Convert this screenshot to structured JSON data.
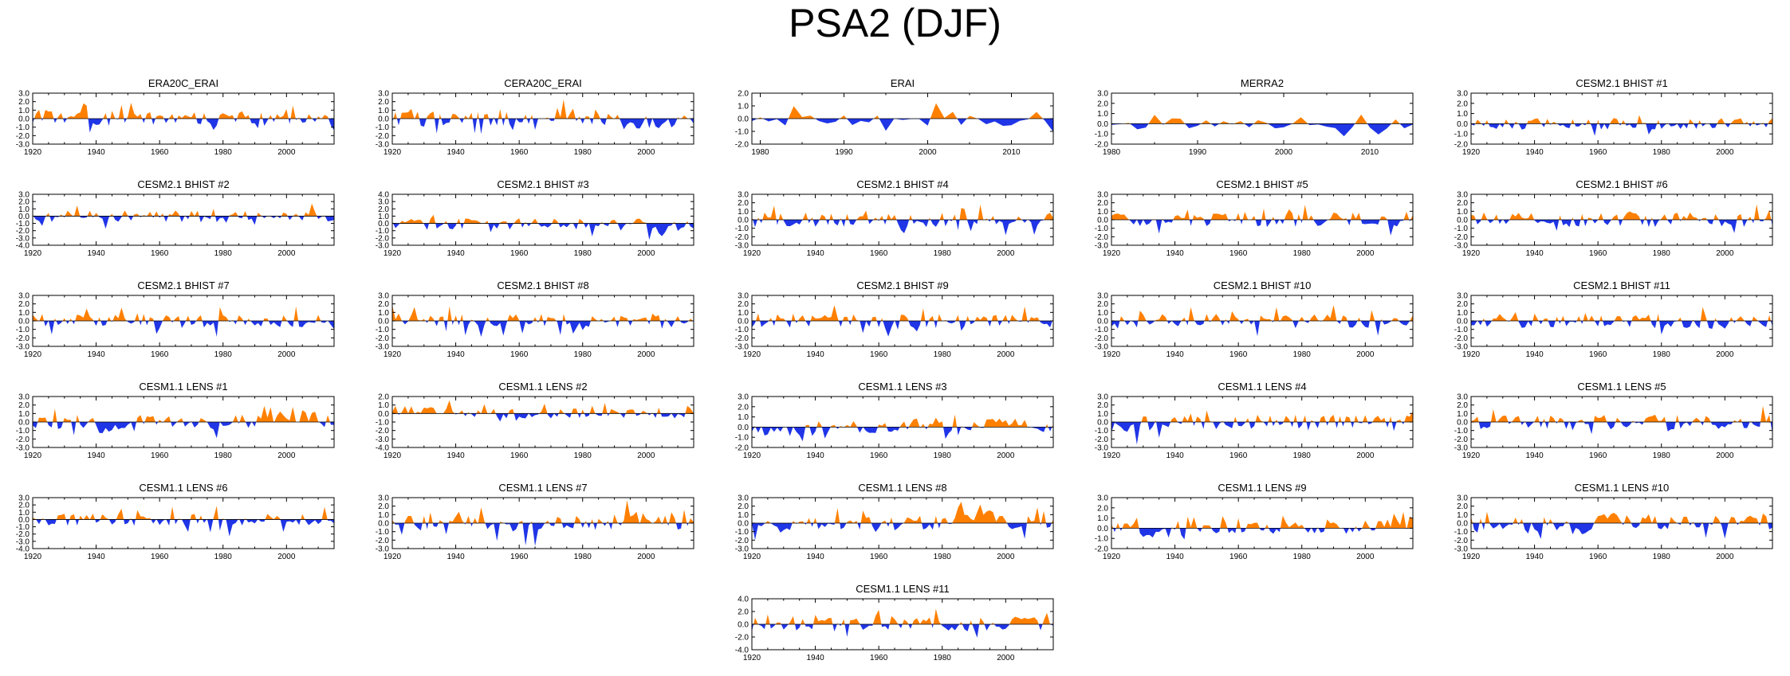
{
  "title": "PSA2 (DJF)",
  "colors": {
    "positive": "#ff8000",
    "negative": "#1f35e6",
    "axis": "#000000"
  },
  "chart_data": [
    {
      "type": "area",
      "title": "ERA20C_ERAI",
      "xlim": [
        1920,
        2015
      ],
      "ylim": [
        -3,
        3
      ],
      "xticks": [
        1920,
        1940,
        1960,
        1980,
        2000
      ],
      "yticks": [
        -3,
        -2,
        -1,
        0,
        1,
        2,
        3
      ],
      "seed": 11,
      "dir": [
        0,
        0,
        0,
        0,
        0,
        0,
        0,
        0,
        0,
        0
      ]
    },
    {
      "type": "area",
      "title": "CERA20C_ERAI",
      "xlim": [
        1920,
        2015
      ],
      "ylim": [
        -3,
        3
      ],
      "xticks": [
        1920,
        1940,
        1960,
        1980,
        2000
      ],
      "yticks": [
        -3,
        -2,
        -1,
        0,
        1,
        2,
        3
      ],
      "seed": 12,
      "dir": [
        0,
        0,
        0,
        0,
        0,
        1,
        0,
        -1,
        -1,
        0
      ]
    },
    {
      "type": "area",
      "title": "ERAI",
      "xlim": [
        1979,
        2015
      ],
      "ylim": [
        -2,
        2
      ],
      "xticks": [
        1980,
        1990,
        2000,
        2010
      ],
      "yticks": [
        -2,
        -1,
        0,
        1,
        2
      ],
      "seed": 13,
      "dir": [
        0,
        0,
        0,
        0,
        0,
        0,
        0,
        0,
        0,
        0
      ]
    },
    {
      "type": "area",
      "title": "MERRA2",
      "xlim": [
        1980,
        2015
      ],
      "ylim": [
        -2,
        3
      ],
      "xticks": [
        1980,
        1990,
        2000,
        2010
      ],
      "yticks": [
        -2,
        -1,
        0,
        1,
        2,
        3
      ],
      "seed": 14,
      "dir": [
        0,
        1,
        0,
        0,
        0,
        0,
        0,
        0,
        0,
        0
      ]
    },
    {
      "type": "area",
      "title": "CESM2.1 BHIST #1",
      "xlim": [
        1920,
        2015
      ],
      "ylim": [
        -2,
        3
      ],
      "xticks": [
        1920,
        1940,
        1960,
        1980,
        2000
      ],
      "yticks": [
        -2,
        -1,
        0,
        1,
        2,
        3
      ],
      "seed": 15,
      "dir": [
        0,
        0,
        0,
        0,
        0,
        0,
        0,
        0,
        0,
        0
      ]
    },
    {
      "type": "area",
      "title": "CESM2.1 BHIST #2",
      "xlim": [
        1920,
        2015
      ],
      "ylim": [
        -4,
        3
      ],
      "xticks": [
        1920,
        1940,
        1960,
        1980,
        2000
      ],
      "yticks": [
        -4,
        -3,
        -2,
        -1,
        0,
        1,
        2,
        3
      ],
      "seed": 16,
      "dir": [
        0,
        0,
        0,
        0,
        0,
        0,
        0,
        0,
        0,
        0
      ]
    },
    {
      "type": "area",
      "title": "CESM2.1 BHIST #3",
      "xlim": [
        1920,
        2015
      ],
      "ylim": [
        -3,
        4
      ],
      "xticks": [
        1920,
        1940,
        1960,
        1980,
        2000
      ],
      "yticks": [
        -3,
        -2,
        -1,
        0,
        1,
        2,
        3,
        4
      ],
      "seed": 17,
      "dir": [
        0,
        0,
        0,
        0,
        0,
        0,
        0,
        0,
        -1,
        -1
      ]
    },
    {
      "type": "area",
      "title": "CESM2.1 BHIST #4",
      "xlim": [
        1920,
        2015
      ],
      "ylim": [
        -3,
        3
      ],
      "xticks": [
        1920,
        1940,
        1960,
        1980,
        2000
      ],
      "yticks": [
        -3,
        -2,
        -1,
        0,
        1,
        2,
        3
      ],
      "seed": 18,
      "dir": [
        0,
        0,
        0,
        0,
        0,
        0,
        0,
        0,
        0,
        0
      ]
    },
    {
      "type": "area",
      "title": "CESM2.1 BHIST #5",
      "xlim": [
        1920,
        2015
      ],
      "ylim": [
        -3,
        3
      ],
      "xticks": [
        1920,
        1940,
        1960,
        1980,
        2000
      ],
      "yticks": [
        -3,
        -2,
        -1,
        0,
        1,
        2,
        3
      ],
      "seed": 19,
      "dir": [
        0,
        0,
        0,
        0,
        0,
        0,
        0,
        0,
        0,
        0
      ]
    },
    {
      "type": "area",
      "title": "CESM2.1 BHIST #6",
      "xlim": [
        1920,
        2015
      ],
      "ylim": [
        -3,
        3
      ],
      "xticks": [
        1920,
        1940,
        1960,
        1980,
        2000
      ],
      "yticks": [
        -3,
        -2,
        -1,
        0,
        1,
        2,
        3
      ],
      "seed": 20,
      "dir": [
        0,
        0,
        0,
        0,
        0,
        0,
        0,
        0,
        0,
        0
      ]
    },
    {
      "type": "area",
      "title": "CESM2.1 BHIST #7",
      "xlim": [
        1920,
        2015
      ],
      "ylim": [
        -3,
        3
      ],
      "xticks": [
        1920,
        1940,
        1960,
        1980,
        2000
      ],
      "yticks": [
        -3,
        -2,
        -1,
        0,
        1,
        2,
        3
      ],
      "seed": 21,
      "dir": [
        0,
        0,
        0,
        0,
        0,
        0,
        0,
        0,
        0,
        0
      ]
    },
    {
      "type": "area",
      "title": "CESM2.1 BHIST #8",
      "xlim": [
        1920,
        2015
      ],
      "ylim": [
        -3,
        3
      ],
      "xticks": [
        1920,
        1940,
        1960,
        1980,
        2000
      ],
      "yticks": [
        -3,
        -2,
        -1,
        0,
        1,
        2,
        3
      ],
      "seed": 22,
      "dir": [
        0,
        0,
        0,
        0,
        0,
        0,
        -1,
        0,
        0,
        0
      ]
    },
    {
      "type": "area",
      "title": "CESM2.1 BHIST #9",
      "xlim": [
        1920,
        2015
      ],
      "ylim": [
        -3,
        3
      ],
      "xticks": [
        1920,
        1940,
        1960,
        1980,
        2000
      ],
      "yticks": [
        -3,
        -2,
        -1,
        0,
        1,
        2,
        3
      ],
      "seed": 23,
      "dir": [
        0,
        0,
        0,
        0,
        0,
        0,
        0,
        0,
        0,
        0
      ]
    },
    {
      "type": "area",
      "title": "CESM2.1 BHIST #10",
      "xlim": [
        1920,
        2015
      ],
      "ylim": [
        -3,
        3
      ],
      "xticks": [
        1920,
        1940,
        1960,
        1980,
        2000
      ],
      "yticks": [
        -3,
        -2,
        -1,
        0,
        1,
        2,
        3
      ],
      "seed": 24,
      "dir": [
        0,
        0,
        0,
        0,
        0,
        0,
        0,
        0,
        0,
        0
      ]
    },
    {
      "type": "area",
      "title": "CESM2.1 BHIST #11",
      "xlim": [
        1920,
        2015
      ],
      "ylim": [
        -3,
        3
      ],
      "xticks": [
        1920,
        1940,
        1960,
        1980,
        2000
      ],
      "yticks": [
        -3,
        -2,
        -1,
        0,
        1,
        2,
        3
      ],
      "seed": 25,
      "dir": [
        0,
        0,
        0,
        0,
        0,
        0,
        0,
        0,
        0,
        0
      ]
    },
    {
      "type": "area",
      "title": "CESM1.1 LENS #1",
      "xlim": [
        1920,
        2015
      ],
      "ylim": [
        -3,
        3
      ],
      "xticks": [
        1920,
        1940,
        1960,
        1980,
        2000
      ],
      "yticks": [
        -3,
        -2,
        -1,
        0,
        1,
        2,
        3
      ],
      "seed": 26,
      "dir": [
        0,
        0,
        -1,
        0,
        0,
        0,
        0,
        0,
        1,
        0
      ]
    },
    {
      "type": "area",
      "title": "CESM1.1 LENS #2",
      "xlim": [
        1920,
        2015
      ],
      "ylim": [
        -4,
        2
      ],
      "xticks": [
        1920,
        1940,
        1960,
        1980,
        2000
      ],
      "yticks": [
        -4,
        -3,
        -2,
        -1,
        0,
        1,
        2
      ],
      "seed": 27,
      "dir": [
        1,
        1,
        0,
        0,
        0,
        0,
        0,
        0,
        0,
        0
      ]
    },
    {
      "type": "area",
      "title": "CESM1.1 LENS #3",
      "xlim": [
        1920,
        2015
      ],
      "ylim": [
        -2,
        3
      ],
      "xticks": [
        1920,
        1940,
        1960,
        1980,
        2000
      ],
      "yticks": [
        -2,
        -1,
        0,
        1,
        2,
        3
      ],
      "seed": 28,
      "dir": [
        -1,
        -1,
        0,
        0,
        0,
        1,
        0,
        1,
        1,
        0
      ]
    },
    {
      "type": "area",
      "title": "CESM1.1 LENS #4",
      "xlim": [
        1920,
        2015
      ],
      "ylim": [
        -3,
        3
      ],
      "xticks": [
        1920,
        1940,
        1960,
        1980,
        2000
      ],
      "yticks": [
        -3,
        -2,
        -1,
        0,
        1,
        2,
        3
      ],
      "seed": 29,
      "dir": [
        -1,
        0,
        0,
        0,
        0,
        0,
        0,
        0,
        0,
        1
      ]
    },
    {
      "type": "area",
      "title": "CESM1.1 LENS #5",
      "xlim": [
        1920,
        2015
      ],
      "ylim": [
        -3,
        3
      ],
      "xticks": [
        1920,
        1940,
        1960,
        1980,
        2000
      ],
      "yticks": [
        -3,
        -2,
        -1,
        0,
        1,
        2,
        3
      ],
      "seed": 30,
      "dir": [
        0,
        0,
        0,
        0,
        0,
        0,
        0,
        0,
        0,
        0
      ]
    },
    {
      "type": "area",
      "title": "CESM1.1 LENS #6",
      "xlim": [
        1920,
        2015
      ],
      "ylim": [
        -4,
        3
      ],
      "xticks": [
        1920,
        1940,
        1960,
        1980,
        2000
      ],
      "yticks": [
        -4,
        -3,
        -2,
        -1,
        0,
        1,
        2,
        3
      ],
      "seed": 31,
      "dir": [
        0,
        0,
        0,
        0,
        0,
        0,
        -1,
        0,
        0,
        0
      ]
    },
    {
      "type": "area",
      "title": "CESM1.1 LENS #7",
      "xlim": [
        1920,
        2015
      ],
      "ylim": [
        -3,
        3
      ],
      "xticks": [
        1920,
        1940,
        1960,
        1980,
        2000
      ],
      "yticks": [
        -3,
        -2,
        -1,
        0,
        1,
        2,
        3
      ],
      "seed": 32,
      "dir": [
        0,
        0,
        0,
        -1,
        -1,
        0,
        0,
        1,
        1,
        0
      ]
    },
    {
      "type": "area",
      "title": "CESM1.1 LENS #8",
      "xlim": [
        1920,
        2015
      ],
      "ylim": [
        -3,
        3
      ],
      "xticks": [
        1920,
        1940,
        1960,
        1980,
        2000
      ],
      "yticks": [
        -3,
        -2,
        -1,
        0,
        1,
        2,
        3
      ],
      "seed": 33,
      "dir": [
        -1,
        0,
        0,
        0,
        0,
        0,
        1,
        1,
        0,
        0
      ]
    },
    {
      "type": "area",
      "title": "CESM1.1 LENS #9",
      "xlim": [
        1920,
        2015
      ],
      "ylim": [
        -2,
        3
      ],
      "xticks": [
        1920,
        1940,
        1960,
        1980,
        2000
      ],
      "yticks": [
        -2,
        -1,
        0,
        1,
        2,
        3
      ],
      "seed": 34,
      "dir": [
        0,
        -1,
        0,
        0,
        0,
        0,
        0,
        0,
        1,
        1
      ]
    },
    {
      "type": "area",
      "title": "CESM1.1 LENS #10",
      "xlim": [
        1920,
        2015
      ],
      "ylim": [
        -3,
        3
      ],
      "xticks": [
        1920,
        1940,
        1960,
        1980,
        2000
      ],
      "yticks": [
        -3,
        -2,
        -1,
        0,
        1,
        2,
        3
      ],
      "seed": 35,
      "dir": [
        0,
        0,
        0,
        -1,
        1,
        0,
        0,
        0,
        0,
        0
      ]
    },
    {
      "type": "area",
      "title": "CESM1.1 LENS #11",
      "xlim": [
        1920,
        2015
      ],
      "ylim": [
        -4,
        4
      ],
      "xticks": [
        1920,
        1940,
        1960,
        1980,
        2000
      ],
      "yticks": [
        -4,
        -2,
        0,
        2,
        4
      ],
      "seed": 36,
      "dir": [
        0,
        0,
        0,
        0,
        0,
        0,
        0,
        0,
        0,
        0
      ]
    }
  ]
}
